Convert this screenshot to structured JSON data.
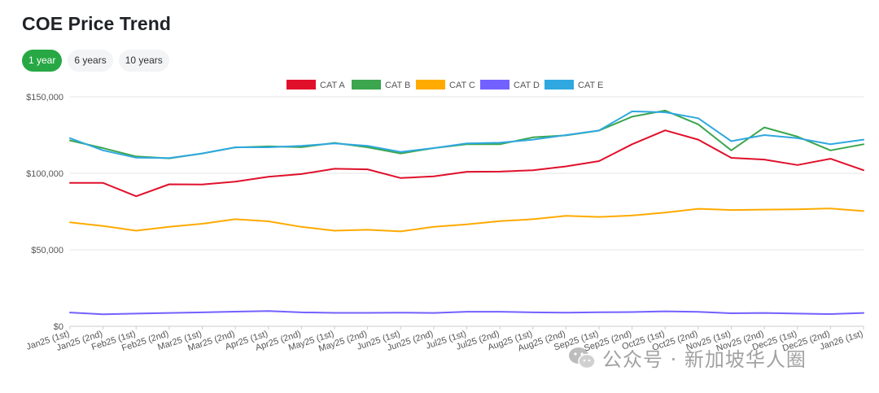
{
  "page": {
    "title": "COE Price Trend"
  },
  "range_tabs": [
    {
      "label": "1 year",
      "active": true
    },
    {
      "label": "6 years",
      "active": false
    },
    {
      "label": "10 years",
      "active": false
    }
  ],
  "watermark": {
    "text": "公众号 · 新加坡华人圈",
    "icon": "wechat-icon"
  },
  "chart_data": {
    "type": "line",
    "title": "",
    "xlabel": "",
    "ylabel": "",
    "ylim": [
      0,
      150000
    ],
    "yticks": [
      0,
      50000,
      100000,
      150000
    ],
    "ytick_labels": [
      "$0",
      "$50,000",
      "$100,000",
      "$150,000"
    ],
    "grid": true,
    "legend_position": "top-center",
    "categories": [
      "Jan25 (1st)",
      "Jan25 (2nd)",
      "Feb25 (1st)",
      "Feb25 (2nd)",
      "Mar25 (1st)",
      "Mar25 (2nd)",
      "Apr25 (1st)",
      "Apr25 (2nd)",
      "May25 (1st)",
      "May25 (2nd)",
      "Jun25 (1st)",
      "Jun25 (2nd)",
      "Jul25 (1st)",
      "Jul25 (2nd)",
      "Aug25 (1st)",
      "Aug25 (2nd)",
      "Sep25 (1st)",
      "Sep25 (2nd)",
      "Oct25 (1st)",
      "Oct25 (2nd)",
      "Nov25 (1st)",
      "Nov25 (2nd)",
      "Dec25 (1st)",
      "Dec25 (2nd)",
      "Jan26 (1st)"
    ],
    "series": [
      {
        "name": "CAT A",
        "color": "#e0102b",
        "values": [
          93800,
          93700,
          85000,
          92800,
          92700,
          94600,
          97700,
          99500,
          103000,
          102600,
          96900,
          98000,
          101000,
          101100,
          102000,
          104500,
          108000,
          119000,
          128100,
          122000,
          110100,
          109000,
          105400,
          109500,
          102000
        ]
      },
      {
        "name": "CAT B",
        "color": "#3ba64d",
        "values": [
          121500,
          116500,
          111000,
          109800,
          113000,
          116900,
          117600,
          117100,
          119900,
          117000,
          113000,
          116500,
          119000,
          119000,
          123500,
          124800,
          127900,
          137000,
          141000,
          132000,
          115000,
          130000,
          124000,
          115000,
          119000
        ]
      },
      {
        "name": "CAT C",
        "color": "#ffaa00",
        "values": [
          68000,
          65600,
          62500,
          65000,
          67000,
          70000,
          68600,
          65000,
          62500,
          63100,
          62000,
          65000,
          66600,
          68700,
          70000,
          72200,
          71500,
          72400,
          74300,
          76800,
          76000,
          76300,
          76500,
          77000,
          75300
        ]
      },
      {
        "name": "CAT D",
        "color": "#7361ff",
        "values": [
          9000,
          7800,
          8300,
          8700,
          9100,
          9600,
          10000,
          9100,
          8800,
          8800,
          8900,
          8700,
          9500,
          9500,
          9100,
          8900,
          9200,
          9300,
          9800,
          9400,
          8500,
          8700,
          8300,
          8000,
          8700
        ]
      },
      {
        "name": "CAT E",
        "color": "#2fa8e0",
        "values": [
          123000,
          115000,
          110200,
          110000,
          113000,
          117000,
          117000,
          118000,
          119500,
          118000,
          114000,
          116500,
          119500,
          120000,
          122000,
          125000,
          128000,
          140500,
          139900,
          136000,
          121000,
          125000,
          123000,
          119000,
          122000
        ]
      }
    ]
  }
}
